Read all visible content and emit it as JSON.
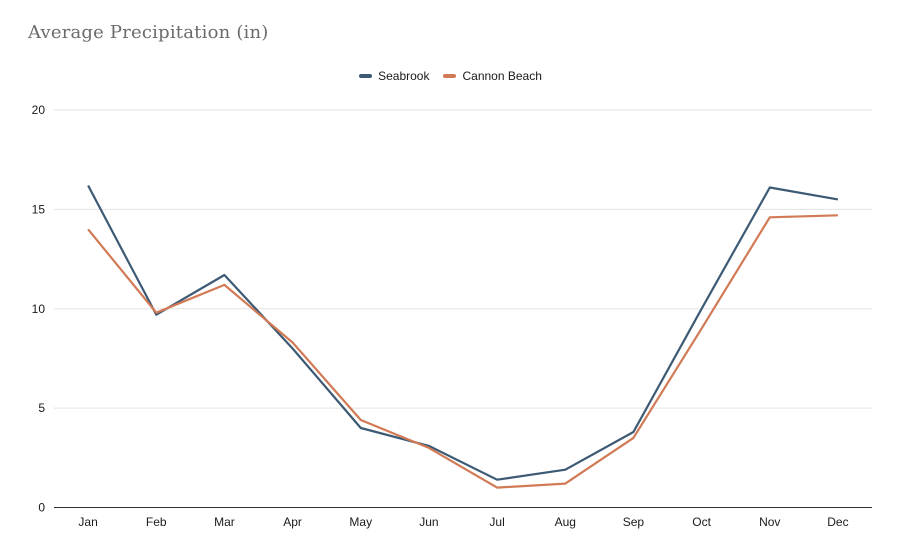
{
  "title": "Average Precipitation (in)",
  "chart_data": {
    "type": "line",
    "title": "Average Precipitation (in)",
    "categories": [
      "Jan",
      "Feb",
      "Mar",
      "Apr",
      "May",
      "Jun",
      "Jul",
      "Aug",
      "Sep",
      "Oct",
      "Nov",
      "Dec"
    ],
    "series": [
      {
        "name": "Seabrook",
        "color": "#3d5a74",
        "values": [
          16.2,
          9.7,
          11.7,
          8.0,
          4.0,
          3.1,
          1.4,
          1.9,
          3.8,
          10.0,
          16.1,
          15.5
        ]
      },
      {
        "name": "Cannon Beach",
        "color": "#d17a55",
        "values": [
          14.0,
          9.8,
          11.2,
          8.3,
          4.4,
          3.0,
          1.0,
          1.2,
          3.5,
          9.0,
          14.6,
          14.7
        ]
      }
    ],
    "ylim": [
      0,
      20
    ],
    "yticks": [
      0,
      5,
      10,
      15,
      20
    ],
    "grid": true,
    "legend_position": "top-center",
    "xlabel": "",
    "ylabel": ""
  },
  "colors": {
    "background": "#ffffff",
    "title_text": "#6b6b6b",
    "axis_text": "#1a1a1a",
    "gridline": "#e3e3e3",
    "axis_line": "#333333"
  }
}
